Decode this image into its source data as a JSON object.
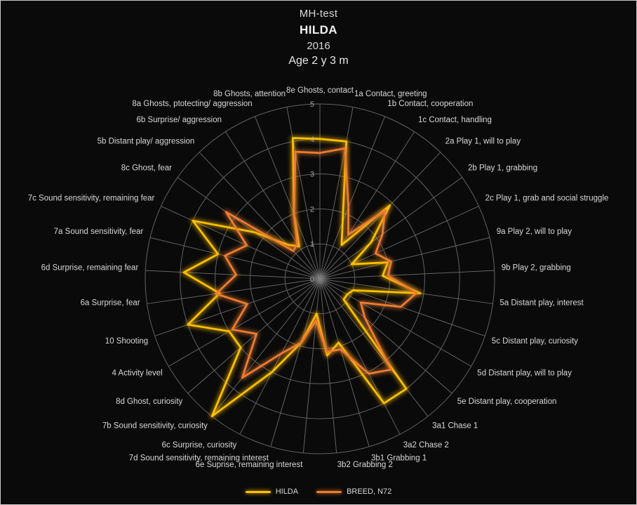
{
  "title": {
    "line1": "MH-test",
    "line2": "HILDA",
    "line3": "2016",
    "line4": "Age 2 y 3 m"
  },
  "legend": [
    {
      "label": "HILDA",
      "color": "#FFC000"
    },
    {
      "label": "BREED, N72",
      "color": "#ED7D31"
    }
  ],
  "colors": {
    "background": "#0a0a0a",
    "border": "#c9c9c9",
    "grid": "#626262",
    "axis_label": "#d8d8d8",
    "tick_label": "#a6a6a6",
    "hilda": "#FFC000",
    "breed": "#ED7D31"
  },
  "chart_data": {
    "type": "line",
    "subtype": "radar",
    "title": "MH-test HILDA 2016 Age 2 y 3 m",
    "axis_min": 0,
    "axis_max": 5,
    "tick_labels": [
      "0",
      "1",
      "2",
      "3",
      "4",
      "5"
    ],
    "grid": true,
    "legend_position": "bottom",
    "categories": [
      "8e Ghosts, contact",
      "1a Contact, greeting",
      "1b Contact, cooperation",
      "1c Contact, handling",
      "2a Play 1, will to play",
      "2b Play 1, grabbing",
      "2c Play 1, grab and social struggle",
      "9a Play 2, will to play",
      "9b Play 2, grabbing",
      "5a Distant play, interest",
      "5c Distant play, curiosity",
      "5d Distant play, will to play",
      "5e Distant play, cooperation",
      "3a1 Chase 1",
      "3a2 Chase 2",
      "3b1 Grabbing 1",
      "3b2 Grabbing 2",
      "6e Suprise, remaining interest",
      "7d Sound sensitivity, remaining interest",
      "6c Surprise, curiosity",
      "7b Sound sensitivity, curiosity",
      "8d Ghost, curiosity",
      "4 Activity level",
      "10 Shooting",
      "6a Surprise, fear",
      "6d Surprise, remaining fear",
      "7a Sound sensitivity, fear",
      "7c Sound sensitivity, remaining fear",
      "8c Ghost, fear",
      "5b Distant play/ aggression",
      "6b Surprise/ aggression",
      "8a Ghosts, ptotecting/ aggression",
      "8b Ghosts, attention"
    ],
    "series": [
      {
        "name": "HILDA",
        "color": "#FFC000",
        "values": [
          4,
          4,
          1.75,
          1.15,
          2.9,
          1.8,
          1,
          2,
          1.8,
          2.9,
          1,
          0.9,
          0.9,
          4,
          4,
          1.9,
          2.2,
          1,
          1.9,
          3,
          5,
          3,
          3,
          4,
          2.9,
          3.9,
          3,
          4,
          2.3,
          1.35,
          1.1,
          2,
          4.1
        ]
      },
      {
        "name": "BREED, N72",
        "color": "#ED7D31",
        "values": [
          3.6,
          3.8,
          2.2,
          1.5,
          2.7,
          2.2,
          1.75,
          2.1,
          1.95,
          2.8,
          2.45,
          1.35,
          1.7,
          3.3,
          3.05,
          2.1,
          2.1,
          1.2,
          1.9,
          2.4,
          3.6,
          2.4,
          2.9,
          2.2,
          3,
          2.4,
          2.8,
          2.3,
          3.3,
          1.1,
          1.2,
          2,
          3.7
        ]
      }
    ]
  }
}
